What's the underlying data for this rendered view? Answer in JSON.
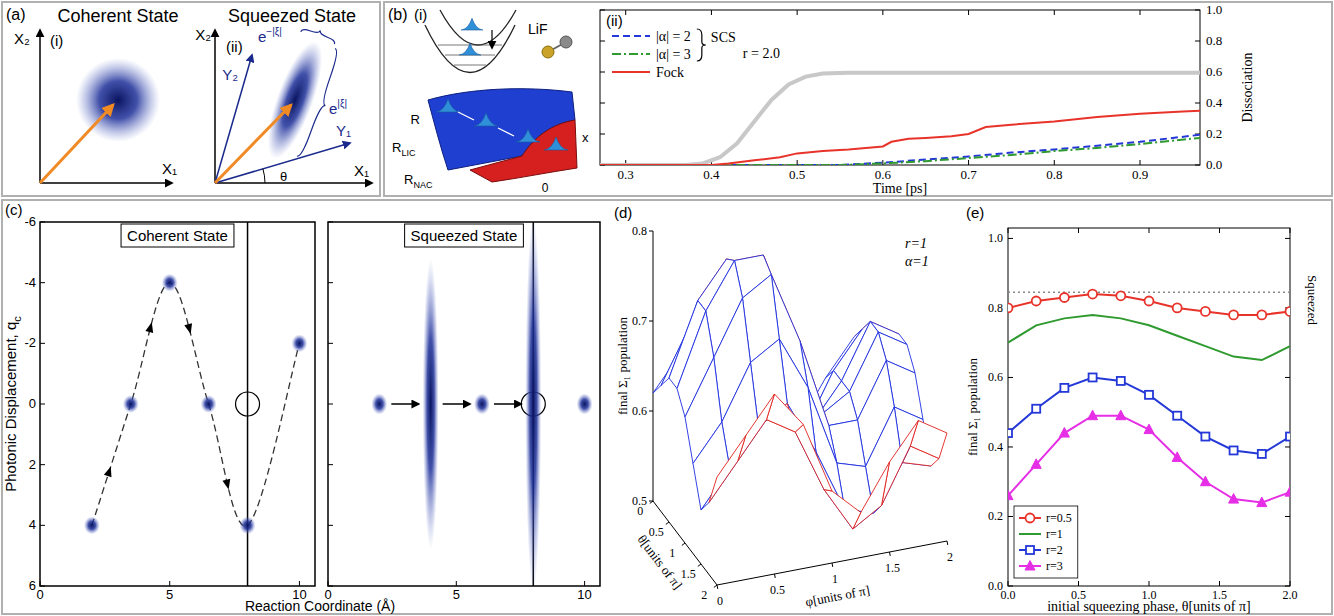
{
  "panels": {
    "a": {
      "label": "(a)",
      "left": {
        "title": "Coherent State",
        "sublabel": "(i)",
        "x_axis": "X₁",
        "y_axis": "X₂"
      },
      "right": {
        "title": "Squeezed State",
        "sublabel": "(ii)",
        "x_axis": "X₁",
        "y_axis": "X₂",
        "rotated_x_axis": "Y₁",
        "rotated_y_axis": "Y₂",
        "angle": "θ",
        "short_width": {
          "base": "e",
          "exponent": "−|ξ|"
        },
        "long_width": {
          "base": "e",
          "exponent": "|ξ|"
        }
      }
    },
    "b": {
      "label": "(b)",
      "diagram": {
        "sublabel": "(i)",
        "molecule": "LiF",
        "r_axis": "R",
        "r_lic": {
          "base": "R",
          "sub": "LIC"
        },
        "r_nac": {
          "base": "R",
          "sub": "NAC"
        },
        "x_axis": "x",
        "x_zero": "0"
      },
      "plot_sublabel": "(ii)"
    },
    "c": {
      "label": "(c)",
      "ylabel": {
        "base": "Photonic Displacement, q",
        "sub": "c"
      },
      "xlabel": "Reaction Coordinate (Å)"
    },
    "d": {
      "label": "(d)"
    },
    "e": {
      "label": "(e)"
    }
  },
  "chart_data": [
    {
      "type": "line",
      "xlabel": "Time [ps]",
      "ylabel": "Dissociation",
      "xlim": [
        0.27,
        0.97
      ],
      "xticks": [
        0.3,
        0.4,
        0.5,
        0.6,
        0.7,
        0.8,
        0.9
      ],
      "ylim": [
        0,
        1
      ],
      "yticks": [
        {
          "value": 0,
          "label": "0.0"
        },
        0.2,
        0.4,
        0.6,
        0.8,
        {
          "value": 1,
          "label": "1.0"
        }
      ],
      "legend": "upper left",
      "annotations": [
        "SCS",
        "r = 2.0"
      ],
      "series": [
        {
          "name": "|α| = 2",
          "color": "#2438d8",
          "line_style": "dashed",
          "x": [
            0.27,
            0.55,
            0.6,
            0.65,
            0.7,
            0.75,
            0.8,
            0.85,
            0.9,
            0.97
          ],
          "values": [
            0,
            0,
            0.015,
            0.035,
            0.055,
            0.08,
            0.1,
            0.125,
            0.15,
            0.195
          ]
        },
        {
          "name": "|α| = 3",
          "color": "#2f9a2f",
          "line_style": "dashdot",
          "x": [
            0.27,
            0.55,
            0.6,
            0.65,
            0.7,
            0.75,
            0.8,
            0.85,
            0.9,
            0.97
          ],
          "values": [
            0,
            0,
            0.01,
            0.025,
            0.045,
            0.065,
            0.09,
            0.11,
            0.135,
            0.175
          ]
        },
        {
          "name": "Fock",
          "color": "#e8332a",
          "line_style": "solid",
          "x": [
            0.27,
            0.4,
            0.42,
            0.45,
            0.48,
            0.5,
            0.53,
            0.56,
            0.6,
            0.61,
            0.63,
            0.65,
            0.68,
            0.7,
            0.72,
            0.75,
            0.8,
            0.85,
            0.9,
            0.95,
            0.97
          ],
          "values": [
            0,
            0,
            0.01,
            0.03,
            0.05,
            0.075,
            0.09,
            0.1,
            0.12,
            0.15,
            0.17,
            0.175,
            0.185,
            0.2,
            0.245,
            0.26,
            0.28,
            0.31,
            0.33,
            0.345,
            0.35
          ]
        },
        {
          "color": "#c8c8c8",
          "line_style": "solid",
          "x": [
            0.27,
            0.37,
            0.39,
            0.41,
            0.43,
            0.45,
            0.47,
            0.49,
            0.51,
            0.53,
            0.56,
            0.97
          ],
          "values": [
            0,
            0,
            0.01,
            0.05,
            0.14,
            0.28,
            0.42,
            0.52,
            0.57,
            0.59,
            0.595,
            0.595
          ]
        }
      ]
    },
    {
      "type": "scatter",
      "title": "Coherent State",
      "xlim": [
        0,
        10.6
      ],
      "xticks": [
        0,
        5,
        10
      ],
      "ylim": [
        6,
        -6
      ],
      "yticks": [
        -6,
        -4,
        -2,
        0,
        2,
        4,
        6
      ],
      "line_style": "dashed",
      "x": [
        2,
        3.5,
        5,
        6.5,
        8,
        10
      ],
      "values": [
        4,
        0,
        -4,
        0,
        4,
        -2
      ],
      "target": {
        "x": 8,
        "y": 0
      }
    },
    {
      "type": "scatter",
      "title": "Squeezed State",
      "xlim": [
        0,
        10.6
      ],
      "xticks": [
        0,
        5,
        10
      ],
      "ylim": [
        6,
        -6
      ],
      "yticks": [
        -6,
        -4,
        -2,
        0,
        2,
        4,
        6
      ],
      "tick_labels": "x",
      "x": [
        2,
        4,
        6,
        8,
        10
      ],
      "values": [
        0,
        0,
        0,
        0,
        0
      ],
      "spread": [
        0.35,
        4.8,
        0.35,
        6.2,
        0.35
      ],
      "target": {
        "x": 8,
        "y": 0
      }
    },
    {
      "type": "surface",
      "xlabel": "θ[units of π]",
      "ylabel": "φ[units of π]",
      "zlabel": "final Σ₁ population",
      "xlim": [
        0,
        2
      ],
      "xticks": [
        0,
        0.5,
        1,
        1.5,
        2
      ],
      "ylim": [
        0,
        2
      ],
      "yticks": [
        0,
        0.5,
        1,
        1.5,
        2
      ],
      "zlim": [
        0.5,
        0.8
      ],
      "zticks": [
        0.5,
        0.6,
        0.7,
        0.8
      ],
      "annotations": [
        "r=1",
        "α=1"
      ],
      "x": [
        0,
        0.25,
        0.5,
        0.75,
        1,
        1.25,
        1.5,
        1.75,
        2
      ],
      "y": [
        0,
        0.25,
        0.5,
        0.75,
        1,
        1.25,
        1.5,
        1.75,
        2
      ],
      "z": [
        [
          0.62,
          0.66,
          0.7,
          0.66,
          0.58,
          0.55,
          0.6,
          0.64,
          0.62
        ],
        [
          0.64,
          0.7,
          0.74,
          0.7,
          0.6,
          0.56,
          0.62,
          0.66,
          0.64
        ],
        [
          0.66,
          0.74,
          0.78,
          0.76,
          0.66,
          0.58,
          0.62,
          0.68,
          0.66
        ],
        [
          0.66,
          0.74,
          0.79,
          0.79,
          0.7,
          0.6,
          0.62,
          0.68,
          0.66
        ],
        [
          0.64,
          0.7,
          0.76,
          0.78,
          0.7,
          0.6,
          0.6,
          0.66,
          0.64
        ],
        [
          0.6,
          0.64,
          0.7,
          0.72,
          0.66,
          0.57,
          0.56,
          0.62,
          0.6
        ],
        [
          0.56,
          0.6,
          0.64,
          0.66,
          0.6,
          0.53,
          0.52,
          0.57,
          0.56
        ],
        [
          0.58,
          0.62,
          0.66,
          0.64,
          0.57,
          0.52,
          0.54,
          0.6,
          0.58
        ],
        [
          0.62,
          0.66,
          0.7,
          0.66,
          0.58,
          0.55,
          0.6,
          0.64,
          0.62
        ]
      ]
    },
    {
      "type": "line",
      "xlabel": "initial squeezing phase, θ[units of π]",
      "ylabel": "final Σ₁ population",
      "xlim": [
        0,
        2
      ],
      "xticks": [
        {
          "value": 0,
          "label": "0.0"
        },
        0.5,
        {
          "value": 1,
          "label": "1.0"
        },
        1.5,
        {
          "value": 2,
          "label": "2.0"
        }
      ],
      "ylim": [
        0,
        1.03
      ],
      "yticks": [
        {
          "value": 0,
          "label": "0.0"
        },
        0.2,
        0.4,
        0.6,
        0.8,
        {
          "value": 1,
          "label": "1.0"
        }
      ],
      "legend": "lower left",
      "annotations": [
        "Squeezed"
      ],
      "series": [
        {
          "name": "r=0.5",
          "color": "#e8332a",
          "marker": "circle",
          "line_style": "solid",
          "x": [
            0,
            0.2,
            0.4,
            0.6,
            0.8,
            1,
            1.2,
            1.4,
            1.6,
            1.8,
            2
          ],
          "values": [
            0.8,
            0.82,
            0.83,
            0.84,
            0.835,
            0.82,
            0.8,
            0.79,
            0.78,
            0.78,
            0.79
          ]
        },
        {
          "name": "r=1",
          "color": "#2f9a2f",
          "marker": "none",
          "line_style": "solid",
          "x": [
            0,
            0.2,
            0.4,
            0.6,
            0.8,
            1,
            1.2,
            1.4,
            1.6,
            1.8,
            2
          ],
          "values": [
            0.7,
            0.75,
            0.77,
            0.78,
            0.77,
            0.75,
            0.72,
            0.69,
            0.66,
            0.65,
            0.69
          ]
        },
        {
          "name": "r=2",
          "color": "#2438d8",
          "marker": "square",
          "line_style": "solid",
          "x": [
            0,
            0.2,
            0.4,
            0.6,
            0.8,
            1,
            1.2,
            1.4,
            1.6,
            1.8,
            2
          ],
          "values": [
            0.44,
            0.51,
            0.57,
            0.6,
            0.59,
            0.55,
            0.49,
            0.43,
            0.39,
            0.38,
            0.43
          ]
        },
        {
          "name": "r=3",
          "color": "#e62ee6",
          "marker": "triangle",
          "line_style": "solid",
          "x": [
            0,
            0.2,
            0.4,
            0.6,
            0.8,
            1,
            1.2,
            1.4,
            1.6,
            1.8,
            2
          ],
          "values": [
            0.26,
            0.35,
            0.44,
            0.49,
            0.49,
            0.45,
            0.37,
            0.3,
            0.25,
            0.24,
            0.27
          ]
        },
        {
          "color": "#888888",
          "marker": "none",
          "line_style": "dotted",
          "x": [
            0,
            2
          ],
          "values": [
            0.845,
            0.845
          ]
        }
      ]
    }
  ]
}
